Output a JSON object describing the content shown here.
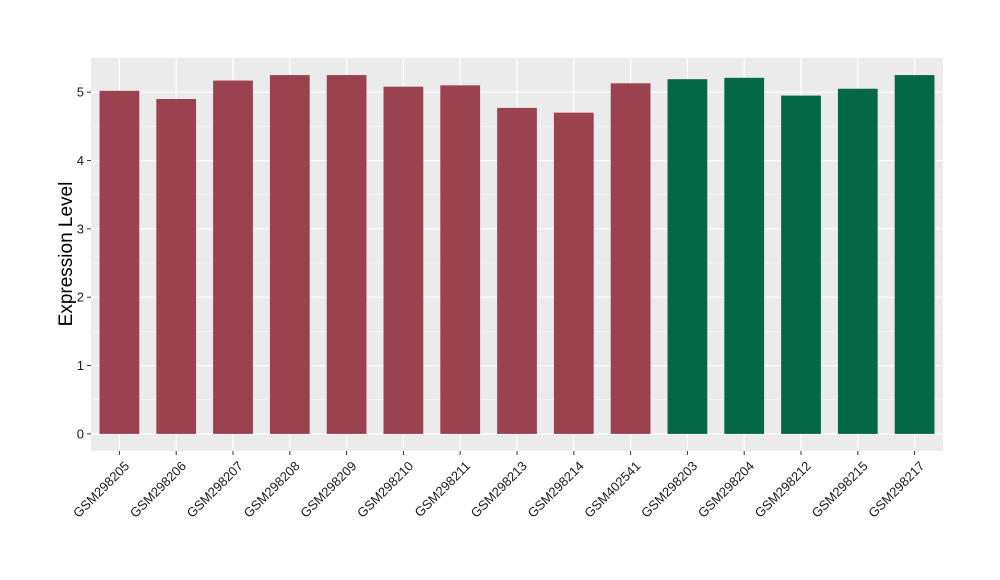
{
  "chart_data": {
    "type": "bar",
    "title": "",
    "xlabel": "",
    "ylabel": "Expression Level",
    "ylim": [
      -0.25,
      5.5
    ],
    "yticks": [
      0,
      1,
      2,
      3,
      4,
      5
    ],
    "grid": true,
    "categories": [
      "GSM298205",
      "GSM298206",
      "GSM298207",
      "GSM298208",
      "GSM298209",
      "GSM298210",
      "GSM298211",
      "GSM298213",
      "GSM298214",
      "GSM402541",
      "GSM298203",
      "GSM298204",
      "GSM298212",
      "GSM298215",
      "GSM298217"
    ],
    "values": [
      5.02,
      4.9,
      5.17,
      5.25,
      5.25,
      5.08,
      5.1,
      4.77,
      4.7,
      5.13,
      5.19,
      5.21,
      4.95,
      5.05,
      5.25
    ],
    "bar_colors": [
      "#9a4250",
      "#9a4250",
      "#9a4250",
      "#9a4250",
      "#9a4250",
      "#9a4250",
      "#9a4250",
      "#9a4250",
      "#9a4250",
      "#9a4250",
      "#046846",
      "#046846",
      "#046846",
      "#046846",
      "#046846"
    ],
    "panel_background": "#ebebeb",
    "grid_color": "#ffffff"
  }
}
